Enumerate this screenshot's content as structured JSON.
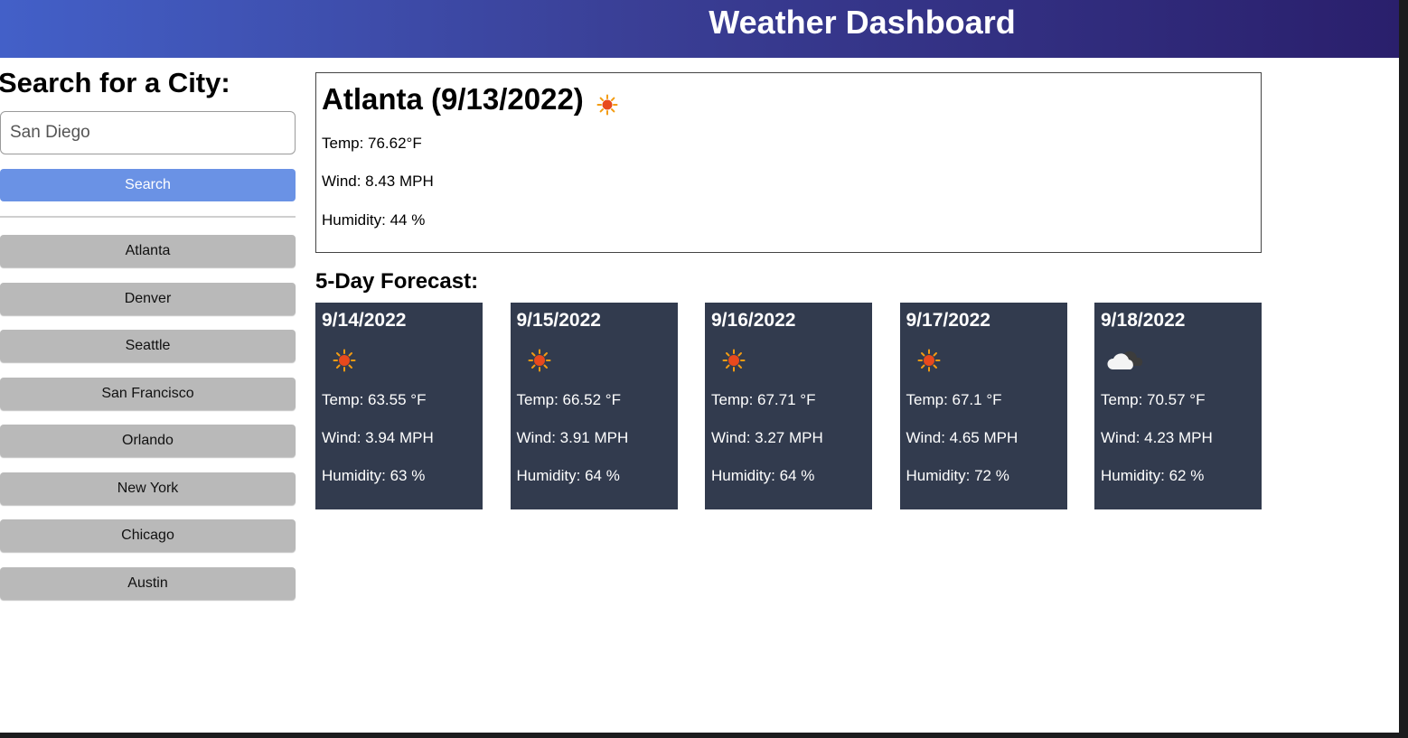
{
  "header": {
    "title": "Weather Dashboard"
  },
  "sidebar": {
    "heading": "Search for a City:",
    "search": {
      "value": "San Diego",
      "placeholder": ""
    },
    "search_button_label": "Search",
    "cities": [
      "Atlanta",
      "Denver",
      "Seattle",
      "San Francisco",
      "Orlando",
      "New York",
      "Chicago",
      "Austin"
    ]
  },
  "current": {
    "title": "Atlanta (9/13/2022)",
    "icon": "sun-icon",
    "temp": "Temp: 76.62°F",
    "wind": "Wind: 8.43 MPH",
    "humidity": "Humidity: 44 %"
  },
  "forecast": {
    "heading": "5-Day Forecast:",
    "days": [
      {
        "date": "9/14/2022",
        "icon": "sun-icon",
        "temp": "Temp: 63.55 °F",
        "wind": "Wind: 3.94 MPH",
        "humidity": "Humidity: 63 %"
      },
      {
        "date": "9/15/2022",
        "icon": "sun-icon",
        "temp": "Temp: 66.52 °F",
        "wind": "Wind: 3.91 MPH",
        "humidity": "Humidity: 64 %"
      },
      {
        "date": "9/16/2022",
        "icon": "sun-icon",
        "temp": "Temp: 67.71 °F",
        "wind": "Wind: 3.27 MPH",
        "humidity": "Humidity: 64 %"
      },
      {
        "date": "9/17/2022",
        "icon": "sun-icon",
        "temp": "Temp: 67.1 °F",
        "wind": "Wind: 4.65 MPH",
        "humidity": "Humidity: 72 %"
      },
      {
        "date": "9/18/2022",
        "icon": "cloud-icon",
        "temp": "Temp: 70.57 °F",
        "wind": "Wind: 4.23 MPH",
        "humidity": "Humidity: 62 %"
      }
    ]
  },
  "colors": {
    "header_start": "#4360c8",
    "header_end": "#2a1f6c",
    "search_button": "#6a92e5",
    "city_button": "#b9b9b9",
    "forecast_card": "#323b4e"
  }
}
